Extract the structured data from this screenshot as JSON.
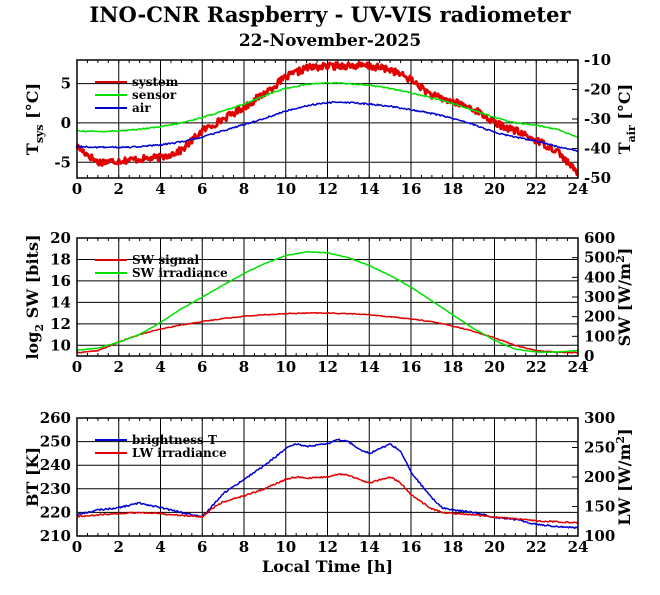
{
  "title": "INO-CNR Raspberry - UV-VIS radiometer",
  "subtitle": "22-November-2025",
  "colors": {
    "red": "#e00000",
    "green": "#00e000",
    "blue": "#0000d0",
    "grid": "#000000"
  },
  "chart_data": [
    {
      "type": "line",
      "panel": "temperature",
      "xlabel": "",
      "xlim": [
        0,
        24
      ],
      "xticks": [
        "0",
        "2",
        "4",
        "6",
        "8",
        "10",
        "12",
        "14",
        "16",
        "18",
        "20",
        "22",
        "24"
      ],
      "ylabel_left": {
        "main": "T",
        "sub": "sys",
        "unit": " [°C]"
      },
      "ylim_left": [
        -7,
        8
      ],
      "yticks_left": [
        "-5",
        "0",
        "5"
      ],
      "ylabel_right": {
        "main": "T",
        "sub": "air",
        "unit": " [°C]"
      },
      "ylim_right": [
        -50,
        -10
      ],
      "yticks_right": [
        "-50",
        "-40",
        "-30",
        "-20",
        "-10"
      ],
      "legend": "top-left",
      "series": [
        {
          "name": "system",
          "color": "#e00000",
          "axis": "left",
          "width": 3,
          "noise": 0.45,
          "x": [
            0,
            1,
            2,
            3,
            3.5,
            4,
            5,
            6,
            7,
            8,
            9,
            10,
            11,
            12,
            13,
            14,
            15,
            16,
            17,
            18,
            19,
            20,
            21,
            22,
            23,
            24
          ],
          "y": [
            -3,
            -5,
            -4.8,
            -4.6,
            -4.5,
            -4.4,
            -3.5,
            -1,
            0.5,
            2,
            3.8,
            5.8,
            7,
            7.2,
            7.3,
            7.2,
            6.8,
            5.5,
            3.5,
            2.7,
            1.8,
            0,
            -1,
            -2.2,
            -3.5,
            -6.5
          ]
        },
        {
          "name": "sensor",
          "color": "#00e000",
          "axis": "left",
          "width": 1.5,
          "noise": 0.08,
          "x": [
            0,
            1,
            2,
            3,
            4,
            5,
            6,
            7,
            8,
            9,
            10,
            11,
            12,
            13,
            14,
            15,
            16,
            17,
            18,
            19,
            20,
            21,
            22,
            23,
            24
          ],
          "y": [
            -1,
            -1.1,
            -1,
            -0.8,
            -0.5,
            0,
            0.7,
            1.5,
            2.4,
            3.5,
            4.4,
            4.9,
            5.1,
            5,
            4.8,
            4.4,
            3.8,
            3.2,
            2.5,
            1.6,
            0.7,
            0,
            -0.3,
            -0.8,
            -1.9
          ]
        },
        {
          "name": "air",
          "color": "#0000d0",
          "axis": "left",
          "width": 1.5,
          "noise": 0.1,
          "x": [
            0,
            1,
            2,
            3,
            4,
            5,
            6,
            7,
            8,
            9,
            10,
            11,
            12,
            13,
            14,
            15,
            16,
            17,
            18,
            19,
            20,
            21,
            22,
            23,
            24
          ],
          "y": [
            -3,
            -3.1,
            -3.1,
            -3,
            -2.8,
            -2.4,
            -1.8,
            -1,
            -0.2,
            0.6,
            1.5,
            2.2,
            2.6,
            2.6,
            2.4,
            2.1,
            1.7,
            1.2,
            0.6,
            -0.2,
            -1.2,
            -1.8,
            -2.3,
            -3,
            -3.6
          ]
        }
      ]
    },
    {
      "type": "line",
      "panel": "shortwave",
      "xlabel": "",
      "xlim": [
        0,
        24
      ],
      "xticks": [
        "0",
        "2",
        "4",
        "6",
        "8",
        "10",
        "12",
        "14",
        "16",
        "18",
        "20",
        "22",
        "24"
      ],
      "ylabel_left": {
        "main": "log",
        "sub": "2",
        "unit": " SW [bits]"
      },
      "ylim_left": [
        9,
        20
      ],
      "yticks_left": [
        "10",
        "12",
        "14",
        "16",
        "18",
        "20"
      ],
      "ylabel_right": {
        "main": "SW [W/m",
        "sup": "2",
        "unit": "]"
      },
      "ylim_right": [
        0,
        600
      ],
      "yticks_right": [
        "0",
        "100",
        "200",
        "300",
        "400",
        "500",
        "600"
      ],
      "legend": "top-left",
      "series": [
        {
          "name": "SW signal",
          "color": "#e00000",
          "axis": "left",
          "width": 1.5,
          "noise": 0.04,
          "x": [
            0,
            1,
            2,
            3,
            4,
            5,
            6,
            7,
            8,
            9,
            10,
            11,
            12,
            13,
            14,
            15,
            16,
            17,
            18,
            19,
            20,
            21,
            22,
            23,
            24
          ],
          "y": [
            9.3,
            9.5,
            10.3,
            11,
            11.5,
            11.9,
            12.2,
            12.5,
            12.7,
            12.85,
            12.95,
            13,
            13,
            12.95,
            12.85,
            12.65,
            12.45,
            12.2,
            11.8,
            11.3,
            10.7,
            10,
            9.5,
            9.35,
            9.3
          ]
        },
        {
          "name": "SW irradiance",
          "color": "#00e000",
          "axis": "right",
          "width": 1.5,
          "noise": 1.5,
          "x": [
            0,
            1,
            2,
            3,
            4,
            5,
            6,
            7,
            8,
            9,
            10,
            11,
            12,
            13,
            14,
            15,
            16,
            17,
            18,
            19,
            20,
            21,
            22,
            23,
            24
          ],
          "y": [
            30,
            40,
            70,
            110,
            170,
            240,
            300,
            360,
            420,
            470,
            510,
            530,
            525,
            500,
            460,
            410,
            350,
            280,
            210,
            140,
            80,
            35,
            20,
            20,
            28
          ]
        }
      ]
    },
    {
      "type": "line",
      "panel": "longwave",
      "xlabel": "Local Time [h]",
      "xlim": [
        0,
        24
      ],
      "xticks": [
        "0",
        "2",
        "4",
        "6",
        "8",
        "10",
        "12",
        "14",
        "16",
        "18",
        "20",
        "22",
        "24"
      ],
      "ylabel_left": {
        "main": "BT [K]"
      },
      "ylim_left": [
        210,
        260
      ],
      "yticks_left": [
        "210",
        "220",
        "230",
        "240",
        "250",
        "260"
      ],
      "ylabel_right": {
        "main": "LW [W/m",
        "sup": "2",
        "unit": "]"
      },
      "ylim_right": [
        100,
        300
      ],
      "yticks_right": [
        "100",
        "150",
        "200",
        "250",
        "300"
      ],
      "legend": "top-left",
      "series": [
        {
          "name": "brightness T",
          "color": "#0000d0",
          "axis": "left",
          "width": 1.5,
          "noise": 0.35,
          "x": [
            0,
            1,
            2,
            3,
            4,
            5,
            6,
            6.5,
            7,
            8,
            9,
            10,
            10.5,
            11,
            12,
            12.5,
            13,
            13.5,
            14,
            15,
            15.5,
            16,
            17,
            17.5,
            18,
            19,
            20,
            21,
            22,
            23,
            24
          ],
          "y": [
            219,
            221,
            222,
            224,
            222,
            220,
            218,
            223,
            228,
            234,
            240,
            247,
            249,
            248,
            249,
            251,
            250,
            247,
            245,
            249,
            246,
            237,
            226,
            222,
            221,
            220,
            218,
            217,
            215,
            214,
            213.5
          ]
        },
        {
          "name": "LW irradiance",
          "color": "#e00000",
          "axis": "right",
          "width": 1.5,
          "noise": 1.2,
          "x": [
            0,
            1,
            2,
            3,
            4,
            5,
            6,
            6.5,
            7,
            8,
            9,
            10,
            10.5,
            11,
            12,
            12.5,
            13,
            13.5,
            14,
            15,
            15.5,
            16,
            17,
            17.5,
            18,
            19,
            20,
            21,
            22,
            23,
            24
          ],
          "y": [
            133,
            136,
            138,
            140,
            138,
            135,
            132,
            147,
            158,
            168,
            180,
            196,
            200,
            198,
            200,
            205,
            203,
            196,
            190,
            200,
            190,
            170,
            146,
            140,
            138,
            136,
            132,
            129,
            126,
            124,
            123
          ]
        }
      ]
    }
  ]
}
